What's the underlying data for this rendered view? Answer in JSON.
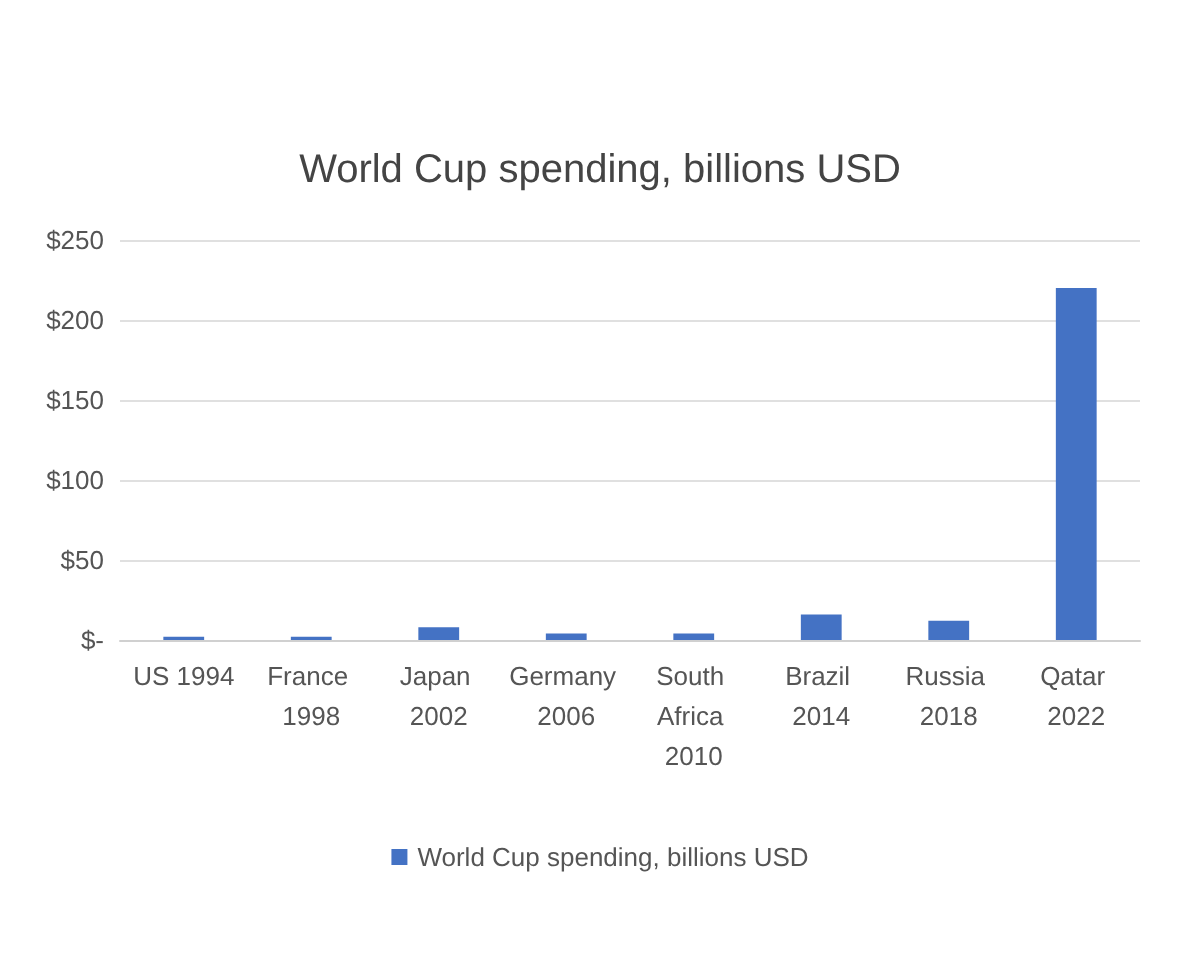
{
  "chart_data": {
    "type": "bar",
    "title": "World Cup spending, billions USD",
    "categories": [
      "US 1994",
      "France 1998",
      "Japan 2002",
      "Germany 2006",
      "South Africa 2010",
      "Brazil 2014",
      "Russia 2018",
      "Qatar 2022"
    ],
    "series": [
      {
        "name": "World Cup spending, billions USD",
        "color": "#4472c4",
        "values": [
          2,
          2,
          8,
          4,
          4,
          16,
          12,
          220
        ]
      }
    ],
    "ylim": [
      0,
      250
    ],
    "yticks": [
      {
        "value": 0,
        "label": "$-"
      },
      {
        "value": 50,
        "label": "$50"
      },
      {
        "value": 100,
        "label": "$100"
      },
      {
        "value": 150,
        "label": "$150"
      },
      {
        "value": 200,
        "label": "$200"
      },
      {
        "value": 250,
        "label": "$250"
      }
    ],
    "grid": "y",
    "legend": "bottom"
  }
}
